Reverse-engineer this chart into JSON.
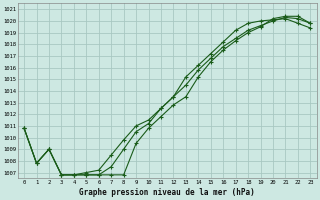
{
  "title": "Graphe pression niveau de la mer (hPa)",
  "bg_color": "#cde8e2",
  "grid_color": "#a8c8c2",
  "line_color": "#1a5c1a",
  "x_labels": [
    "0",
    "1",
    "2",
    "3",
    "4",
    "5",
    "6",
    "7",
    "8",
    "9",
    "10",
    "11",
    "12",
    "13",
    "14",
    "15",
    "16",
    "17",
    "18",
    "19",
    "20",
    "21",
    "22",
    "23"
  ],
  "ylim": [
    1006.5,
    1021.5
  ],
  "yticks": [
    1007,
    1008,
    1009,
    1010,
    1011,
    1012,
    1013,
    1014,
    1015,
    1016,
    1017,
    1018,
    1019,
    1020,
    1021
  ],
  "series1": [
    1010.8,
    1007.8,
    1009.0,
    1006.8,
    1006.8,
    1006.8,
    1006.8,
    1006.8,
    1006.8,
    1009.5,
    1010.8,
    1011.8,
    1012.8,
    1013.5,
    1015.2,
    1016.5,
    1017.5,
    1018.3,
    1019.0,
    1019.5,
    1020.2,
    1020.4,
    1020.4,
    1019.8
  ],
  "series2": [
    1010.8,
    1007.8,
    1009.0,
    1006.8,
    1006.8,
    1006.8,
    1006.8,
    1007.5,
    1009.0,
    1010.5,
    1011.2,
    1012.5,
    1013.5,
    1014.5,
    1015.8,
    1016.8,
    1017.8,
    1018.5,
    1019.2,
    1019.6,
    1020.0,
    1020.3,
    1020.2,
    1019.8
  ],
  "series3": [
    1010.8,
    1007.8,
    1009.0,
    1006.8,
    1006.8,
    1007.0,
    1007.2,
    1008.5,
    1009.8,
    1011.0,
    1011.5,
    1012.5,
    1013.5,
    1015.2,
    1016.2,
    1017.2,
    1018.2,
    1019.2,
    1019.8,
    1020.0,
    1020.1,
    1020.2,
    1019.8,
    1019.4
  ],
  "figsize": [
    3.2,
    2.0
  ],
  "dpi": 100
}
